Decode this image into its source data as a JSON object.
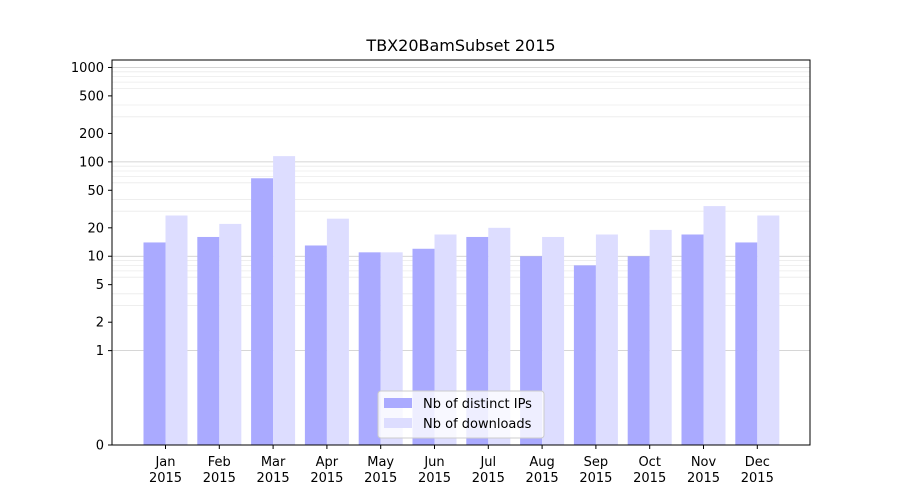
{
  "chart_data": {
    "type": "bar",
    "title": "TBX20BamSubset 2015",
    "xlabel": "",
    "ylabel": "",
    "yscale": "symlog",
    "ylim": [
      0,
      1200
    ],
    "yticks": [
      0,
      1,
      2,
      5,
      10,
      20,
      50,
      100,
      200,
      500,
      1000
    ],
    "grid": "horizontal",
    "legend_position": "bottom-center",
    "categories": [
      [
        "Jan",
        "2015"
      ],
      [
        "Feb",
        "2015"
      ],
      [
        "Mar",
        "2015"
      ],
      [
        "Apr",
        "2015"
      ],
      [
        "May",
        "2015"
      ],
      [
        "Jun",
        "2015"
      ],
      [
        "Jul",
        "2015"
      ],
      [
        "Aug",
        "2015"
      ],
      [
        "Sep",
        "2015"
      ],
      [
        "Oct",
        "2015"
      ],
      [
        "Nov",
        "2015"
      ],
      [
        "Dec",
        "2015"
      ]
    ],
    "series": [
      {
        "name": "Nb of distinct IPs",
        "color": "#aaaaff",
        "values": [
          14,
          16,
          67,
          13,
          11,
          12,
          16,
          10,
          8,
          10,
          17,
          14
        ]
      },
      {
        "name": "Nb of downloads",
        "color": "#ddddff",
        "values": [
          27,
          22,
          115,
          25,
          11,
          17,
          20,
          16,
          17,
          19,
          34,
          27
        ]
      }
    ]
  }
}
